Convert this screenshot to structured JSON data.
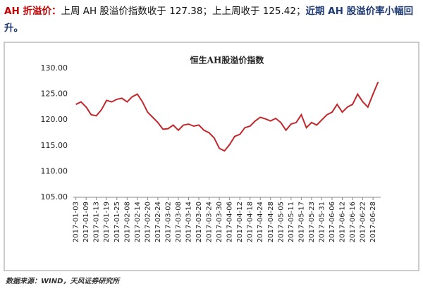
{
  "header": {
    "label": "AH 折溢价：",
    "text": "上周 AH 股溢价指数收于 127.38；上上周收于 125.42；",
    "conclusion": "近期 AH 股溢价率小幅回升。"
  },
  "source": "数据来源：WIND，天风证券研究所",
  "chart_data": {
    "type": "line",
    "title": "恒生AH股溢价指数",
    "categories": [
      "2017-01-03",
      null,
      "2017-01-09",
      null,
      "2017-01-13",
      null,
      "2017-01-19",
      null,
      "2017-01-25",
      null,
      "2017-02-08",
      null,
      "2017-02-14",
      null,
      "2017-02-20",
      null,
      "2017-02-24",
      null,
      "2017-03-02",
      null,
      "2017-03-08",
      null,
      "2017-03-14",
      null,
      "2017-03-20",
      null,
      "2017-03-24",
      null,
      "2017-03-30",
      null,
      "2017-04-06",
      null,
      "2017-04-12",
      null,
      "2017-04-18",
      null,
      "2017-04-24",
      null,
      "2017-04-28",
      null,
      "2017-05-05",
      null,
      "2017-05-11",
      null,
      "2017-05-17",
      null,
      "2017-05-23",
      null,
      "2017-05-31",
      null,
      "2017-06-06",
      null,
      "2017-06-12",
      null,
      "2017-06-16",
      null,
      "2017-06-22",
      null,
      "2017-06-28",
      null
    ],
    "series": [
      {
        "name": "恒生AH股溢价指数",
        "color": "#c0282d",
        "values": [
          123,
          123.5,
          122.5,
          121,
          120.8,
          122,
          123.8,
          123.5,
          124,
          124.2,
          123.5,
          124.5,
          125,
          123.5,
          121.5,
          120.5,
          119.5,
          118.2,
          118.3,
          119,
          118,
          119,
          119.2,
          118.8,
          119,
          118,
          117.5,
          116.5,
          114.5,
          114,
          115.2,
          116.8,
          117.2,
          118.5,
          118.8,
          119.8,
          120.5,
          120.2,
          119.8,
          120.3,
          119.5,
          118,
          119.2,
          119.5,
          121,
          118.5,
          119.5,
          119,
          120,
          121,
          121.5,
          123,
          121.5,
          122.5,
          123,
          125,
          123.5,
          122.5,
          125,
          127.38
        ]
      }
    ],
    "ylim": [
      105,
      130
    ],
    "yticks": [
      {
        "value": 105,
        "label": "105.00"
      },
      {
        "value": 110,
        "label": "110.00"
      },
      {
        "value": 115,
        "label": "115.00"
      },
      {
        "value": 120,
        "label": "120.00"
      },
      {
        "value": 125,
        "label": "125.00"
      },
      {
        "value": 130,
        "label": "130.00"
      }
    ],
    "grid": false
  }
}
